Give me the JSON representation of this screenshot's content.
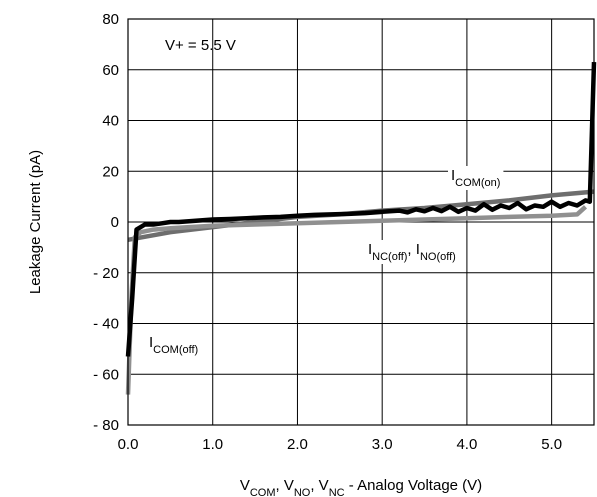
{
  "chart_data": {
    "type": "line",
    "xlabel": {
      "parts": [
        {
          "text": "V",
          "sub": false
        },
        {
          "text": "COM",
          "sub": true
        },
        {
          "text": ", V",
          "sub": false
        },
        {
          "text": "NO",
          "sub": true
        },
        {
          "text": ", V",
          "sub": false
        },
        {
          "text": "NC",
          "sub": true
        },
        {
          "text": " - Analog Voltage (V)",
          "sub": false
        }
      ]
    },
    "ylabel": "Leakage Current  (pA)",
    "xlim": [
      0,
      5.5
    ],
    "ylim": [
      -80,
      80
    ],
    "x_ticks": [
      0,
      1,
      2,
      3,
      4,
      5
    ],
    "x_tick_labels": [
      "0.0",
      "1.0",
      "2.0",
      "3.0",
      "4.0",
      "5.0"
    ],
    "y_ticks": [
      80,
      60,
      40,
      20,
      0,
      -20,
      -40,
      -60,
      -80
    ],
    "y_tick_labels": [
      "80",
      "60",
      "40",
      "20",
      "0",
      "- 20",
      "- 40",
      "- 60",
      "- 80"
    ],
    "grid": true,
    "annotation": "V+ = 5.5 V",
    "series": [
      {
        "key": "icom_on",
        "color": "#6e6e6e",
        "label_parts": [
          {
            "text": "I",
            "sub": false
          },
          {
            "text": "COM(on)",
            "sub": true
          }
        ],
        "points": [
          [
            0,
            -7
          ],
          [
            0.5,
            -4
          ],
          [
            1.0,
            -2
          ],
          [
            1.5,
            0
          ],
          [
            2.0,
            2
          ],
          [
            2.5,
            3
          ],
          [
            3.0,
            4.5
          ],
          [
            3.5,
            5.5
          ],
          [
            4.0,
            7
          ],
          [
            4.5,
            8.5
          ],
          [
            5.0,
            10.5
          ],
          [
            5.5,
            12
          ]
        ]
      },
      {
        "key": "inc_ino_off",
        "color": "#909090",
        "label_parts": [
          {
            "text": "I",
            "sub": false
          },
          {
            "text": "NC(off)",
            "sub": true
          },
          {
            "text": ", I",
            "sub": false
          },
          {
            "text": "NO(off)",
            "sub": true
          }
        ],
        "points": [
          [
            0,
            -68
          ],
          [
            0.04,
            -30
          ],
          [
            0.08,
            -6
          ],
          [
            0.15,
            -4
          ],
          [
            0.3,
            -3
          ],
          [
            0.5,
            -2.5
          ],
          [
            1.0,
            -1.5
          ],
          [
            1.5,
            -1
          ],
          [
            2.0,
            -0.5
          ],
          [
            2.5,
            0
          ],
          [
            3.0,
            0.5
          ],
          [
            3.5,
            1
          ],
          [
            4.0,
            1.5
          ],
          [
            4.5,
            2
          ],
          [
            5.0,
            2.5
          ],
          [
            5.3,
            3
          ],
          [
            5.4,
            6
          ]
        ]
      },
      {
        "key": "icom_off",
        "color": "#000000",
        "label_parts": [
          {
            "text": "I",
            "sub": false
          },
          {
            "text": "COM(off)",
            "sub": true
          }
        ],
        "points": [
          [
            0,
            -53
          ],
          [
            0.05,
            -30
          ],
          [
            0.1,
            -3
          ],
          [
            0.2,
            -1
          ],
          [
            0.3,
            -1
          ],
          [
            0.4,
            -0.5
          ],
          [
            0.5,
            0
          ],
          [
            0.6,
            0
          ],
          [
            0.8,
            0.5
          ],
          [
            1.0,
            1
          ],
          [
            1.2,
            1.2
          ],
          [
            1.4,
            1.5
          ],
          [
            1.6,
            1.8
          ],
          [
            1.8,
            2
          ],
          [
            2.0,
            2.5
          ],
          [
            2.2,
            2.8
          ],
          [
            2.4,
            3
          ],
          [
            2.6,
            3.2
          ],
          [
            2.8,
            3.5
          ],
          [
            3.0,
            4
          ],
          [
            3.2,
            4.5
          ],
          [
            3.3,
            3.8
          ],
          [
            3.4,
            5
          ],
          [
            3.5,
            4.2
          ],
          [
            3.6,
            5.5
          ],
          [
            3.7,
            4.3
          ],
          [
            3.8,
            6
          ],
          [
            3.9,
            4
          ],
          [
            4.0,
            5.5
          ],
          [
            4.1,
            4.5
          ],
          [
            4.2,
            7
          ],
          [
            4.3,
            4.8
          ],
          [
            4.4,
            6.5
          ],
          [
            4.5,
            5.5
          ],
          [
            4.6,
            7.5
          ],
          [
            4.7,
            5
          ],
          [
            4.8,
            6.5
          ],
          [
            4.9,
            6
          ],
          [
            5.0,
            8
          ],
          [
            5.1,
            6
          ],
          [
            5.2,
            7.5
          ],
          [
            5.3,
            6.5
          ],
          [
            5.4,
            8.5
          ],
          [
            5.45,
            8
          ],
          [
            5.5,
            63
          ]
        ]
      }
    ]
  }
}
